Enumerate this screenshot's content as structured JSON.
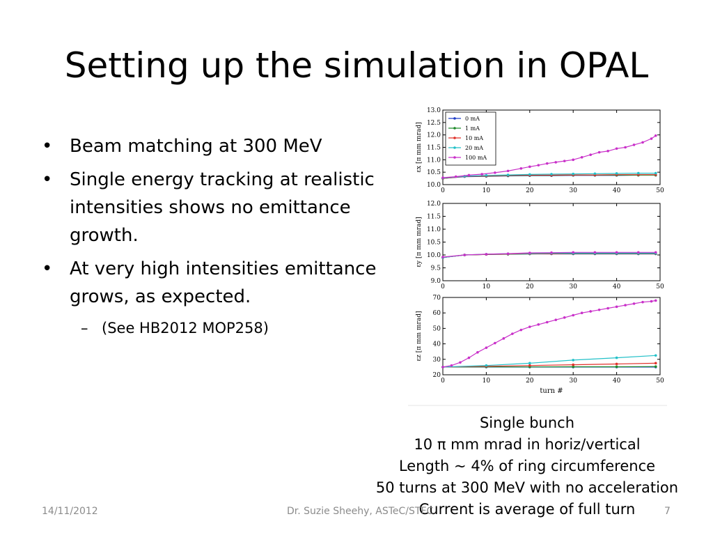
{
  "slide": {
    "title": "Setting up the simulation in OPAL",
    "bullets": [
      "Beam matching at 300 MeV",
      "Single energy tracking at realistic intensities shows no emittance growth.",
      "At very high intensities emittance grows, as expected."
    ],
    "sub_bullet": "(See HB2012 MOP258)",
    "bullet_glyph": "•",
    "sub_glyph": "–",
    "caption": [
      "Single bunch",
      "10 π mm mrad in horiz/vertical",
      "Length ~ 4% of ring circumference",
      "50 turns at 300 MeV with no acceleration",
      "Current is average of full turn"
    ],
    "footer": {
      "date": "14/11/2012",
      "author": "Dr. Suzie Sheehy, ASTeC/STFC",
      "page": "7"
    }
  },
  "chart_data": [
    {
      "type": "line",
      "ylabel": "εx [π mm mrad]",
      "xlim": [
        0,
        50
      ],
      "ylim": [
        10.0,
        13.0
      ],
      "xticks": [
        "0",
        "10",
        "20",
        "30",
        "40",
        "50"
      ],
      "yticks": [
        "10.0",
        "10.5",
        "11.0",
        "11.5",
        "12.0",
        "12.5",
        "13.0"
      ],
      "legend_position": "top-left",
      "series": [
        {
          "name": "0 mA",
          "color": "#1f3cc6",
          "x": [
            0,
            5,
            10,
            15,
            20,
            25,
            30,
            35,
            40,
            45,
            49
          ],
          "values": [
            10.25,
            10.32,
            10.33,
            10.35,
            10.36,
            10.36,
            10.37,
            10.37,
            10.37,
            10.38,
            10.38
          ]
        },
        {
          "name": "1 mA",
          "color": "#1f8a2a",
          "x": [
            0,
            5,
            10,
            15,
            20,
            25,
            30,
            35,
            40,
            45,
            49
          ],
          "values": [
            10.25,
            10.33,
            10.34,
            10.36,
            10.37,
            10.37,
            10.38,
            10.38,
            10.38,
            10.38,
            10.38
          ]
        },
        {
          "name": "10 mA",
          "color": "#e0302a",
          "x": [
            0,
            5,
            10,
            15,
            20,
            25,
            30,
            35,
            40,
            45,
            49
          ],
          "values": [
            10.25,
            10.33,
            10.35,
            10.37,
            10.38,
            10.38,
            10.39,
            10.39,
            10.4,
            10.4,
            10.4
          ]
        },
        {
          "name": "20 mA",
          "color": "#22c0c8",
          "x": [
            0,
            5,
            10,
            15,
            20,
            25,
            30,
            35,
            40,
            45,
            49
          ],
          "values": [
            10.26,
            10.34,
            10.37,
            10.39,
            10.41,
            10.42,
            10.43,
            10.44,
            10.45,
            10.46,
            10.46
          ]
        },
        {
          "name": "100 mA",
          "color": "#c930c9",
          "x": [
            0,
            3,
            6,
            9,
            12,
            15,
            18,
            20,
            22,
            24,
            26,
            28,
            30,
            32,
            34,
            36,
            38,
            40,
            42,
            44,
            46,
            48,
            49
          ],
          "values": [
            10.28,
            10.32,
            10.38,
            10.42,
            10.48,
            10.55,
            10.65,
            10.72,
            10.78,
            10.85,
            10.9,
            10.95,
            11.0,
            11.1,
            11.2,
            11.3,
            11.35,
            11.45,
            11.5,
            11.6,
            11.7,
            11.85,
            11.97
          ]
        }
      ]
    },
    {
      "type": "line",
      "ylabel": "εy [π mm mrad]",
      "xlim": [
        0,
        50
      ],
      "ylim": [
        9.0,
        12.0
      ],
      "xticks": [
        "0",
        "10",
        "20",
        "30",
        "40",
        "50"
      ],
      "yticks": [
        "9.0",
        "9.5",
        "10.0",
        "10.5",
        "11.0",
        "11.5",
        "12.0"
      ],
      "series": [
        {
          "name": "0 mA",
          "color": "#1f3cc6",
          "x": [
            0,
            5,
            10,
            15,
            20,
            25,
            30,
            35,
            40,
            45,
            49
          ],
          "values": [
            9.9,
            10.0,
            10.02,
            10.03,
            10.04,
            10.04,
            10.04,
            10.04,
            10.04,
            10.04,
            10.04
          ]
        },
        {
          "name": "1 mA",
          "color": "#1f8a2a",
          "x": [
            0,
            5,
            10,
            15,
            20,
            25,
            30,
            35,
            40,
            45,
            49
          ],
          "values": [
            9.9,
            10.0,
            10.02,
            10.03,
            10.04,
            10.05,
            10.05,
            10.05,
            10.05,
            10.05,
            10.05
          ]
        },
        {
          "name": "10 mA",
          "color": "#e0302a",
          "x": [
            0,
            5,
            10,
            15,
            20,
            25,
            30,
            35,
            40,
            45,
            49
          ],
          "values": [
            9.9,
            10.0,
            10.02,
            10.04,
            10.05,
            10.05,
            10.06,
            10.06,
            10.06,
            10.06,
            10.06
          ]
        },
        {
          "name": "20 mA",
          "color": "#22c0c8",
          "x": [
            0,
            5,
            10,
            15,
            20,
            25,
            30,
            35,
            40,
            45,
            49
          ],
          "values": [
            9.9,
            10.0,
            10.03,
            10.05,
            10.06,
            10.07,
            10.07,
            10.07,
            10.07,
            10.07,
            10.07
          ]
        },
        {
          "name": "100 mA",
          "color": "#c930c9",
          "x": [
            0,
            5,
            10,
            15,
            20,
            25,
            30,
            35,
            40,
            45,
            49
          ],
          "values": [
            9.92,
            10.0,
            10.03,
            10.05,
            10.08,
            10.09,
            10.1,
            10.1,
            10.1,
            10.1,
            10.1
          ]
        }
      ]
    },
    {
      "type": "line",
      "xlabel": "turn #",
      "ylabel": "εz [π mm mrad]",
      "xlim": [
        0,
        50
      ],
      "ylim": [
        20,
        70
      ],
      "xticks": [
        "0",
        "10",
        "20",
        "30",
        "40",
        "50"
      ],
      "yticks": [
        "20",
        "30",
        "40",
        "50",
        "60",
        "70"
      ],
      "series": [
        {
          "name": "0 mA",
          "color": "#1f3cc6",
          "x": [
            0,
            10,
            20,
            30,
            40,
            49
          ],
          "values": [
            25,
            25,
            25,
            25,
            25,
            25
          ]
        },
        {
          "name": "1 mA",
          "color": "#1f8a2a",
          "x": [
            0,
            10,
            20,
            30,
            40,
            49
          ],
          "values": [
            25,
            25.1,
            25.1,
            25.2,
            25.2,
            25.3
          ]
        },
        {
          "name": "10 mA",
          "color": "#e0302a",
          "x": [
            0,
            10,
            20,
            30,
            40,
            49
          ],
          "values": [
            25,
            25.5,
            26,
            26.5,
            27,
            27.5
          ]
        },
        {
          "name": "20 mA",
          "color": "#22c0c8",
          "x": [
            0,
            10,
            20,
            30,
            40,
            49
          ],
          "values": [
            25,
            26,
            27.5,
            29.5,
            31,
            32.5
          ]
        },
        {
          "name": "100 mA",
          "color": "#c930c9",
          "x": [
            0,
            2,
            4,
            6,
            8,
            10,
            12,
            14,
            16,
            18,
            20,
            22,
            24,
            26,
            28,
            30,
            32,
            34,
            36,
            38,
            40,
            42,
            44,
            46,
            48,
            49
          ],
          "values": [
            25,
            26,
            28,
            31,
            34.5,
            37.5,
            40.5,
            43.5,
            46.5,
            49,
            51,
            52.5,
            54,
            55.5,
            57,
            58.5,
            60,
            61,
            62,
            63,
            64,
            65,
            66,
            67,
            67.5,
            68
          ]
        }
      ]
    }
  ]
}
